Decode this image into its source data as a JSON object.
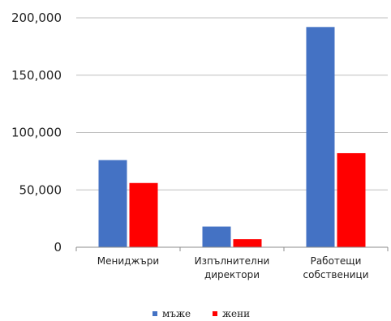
{
  "chart_data": {
    "type": "bar",
    "categories": [
      [
        "Мениджъри"
      ],
      [
        "Изпълнителни",
        "директори"
      ],
      [
        "Работещи",
        "собственици"
      ]
    ],
    "series": [
      {
        "name": "мъже",
        "color": "#4472C4",
        "values": [
          76000,
          18000,
          192000
        ]
      },
      {
        "name": "жени",
        "color": "#FF0000",
        "values": [
          56000,
          7000,
          82000
        ]
      }
    ],
    "ylim": [
      0,
      200000
    ],
    "yticks": [
      0,
      50000,
      100000,
      150000,
      200000
    ],
    "ytick_labels": [
      "0",
      "50,000",
      "100,000",
      "150,000",
      "200,000"
    ],
    "grid": true,
    "legend_position": "bottom",
    "title": "",
    "xlabel": "",
    "ylabel": ""
  }
}
